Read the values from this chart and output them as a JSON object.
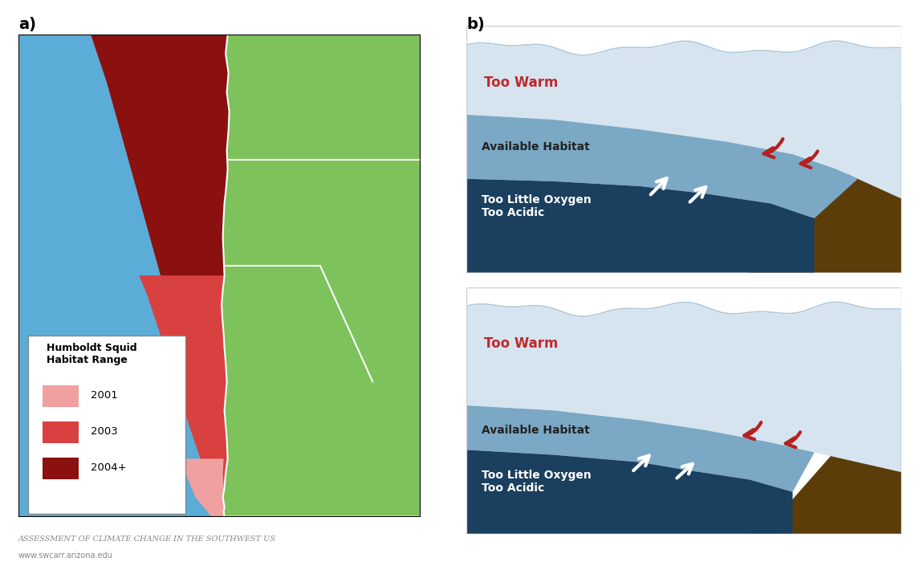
{
  "fig_width": 11.4,
  "fig_height": 7.15,
  "bg_color": "#ffffff",
  "label_a": "a)",
  "label_b": "b)",
  "label_fontsize": 14,
  "ocean_color": "#5BACD6",
  "land_color": "#7DC25A",
  "squid_2001_color": "#F0A0A0",
  "squid_2003_color": "#D94040",
  "squid_2004_color": "#8B1010",
  "legend_title": "Humboldt Squid\nHabitat Range",
  "legend_labels": [
    "2001",
    "2003",
    "2004+"
  ],
  "too_warm_color": "#D6E4F0",
  "available_habitat_color": "#7BA8C4",
  "too_acidic_color": "#1B3F5E",
  "seafloor_color": "#5C3D0A",
  "too_warm_text_color": "#C0282C",
  "available_habitat_text_color": "#222222",
  "too_acidic_text_color": "#ffffff",
  "red_arrow_color": "#B52020",
  "white_arrow_color": "#ffffff",
  "waterline_color": "#aac8e0",
  "footer_text": "Assessment of Climate Change in the Southwest US",
  "footer_url": "www.swcarr.arizona.edu",
  "footer_color": "#888888"
}
